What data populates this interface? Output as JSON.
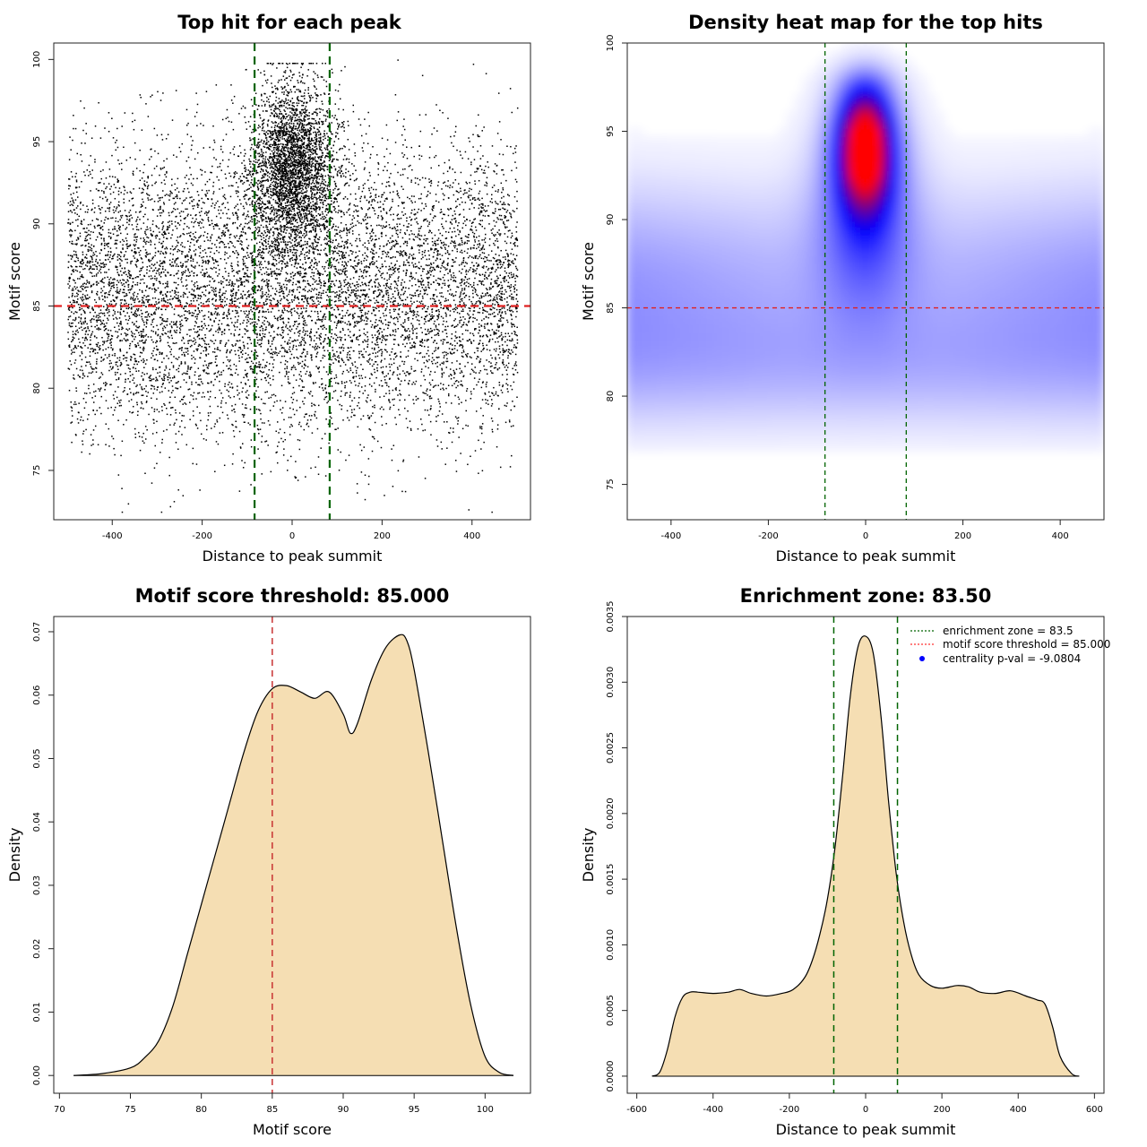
{
  "chart_data": [
    {
      "type": "scatter",
      "title": "Top hit for each peak",
      "xlabel": "Distance to peak summit",
      "ylabel": "Motif score",
      "xlim": [
        -530,
        530
      ],
      "ylim": [
        72,
        101
      ],
      "xticks": [
        -400,
        -200,
        0,
        200,
        400
      ],
      "yticks": [
        75,
        80,
        85,
        90,
        95,
        100
      ],
      "hlines": [
        {
          "y": 85,
          "color": "#e02020",
          "style": "dashed"
        }
      ],
      "vlines": [
        {
          "x": -83.5,
          "color": "#006400",
          "style": "dashed"
        },
        {
          "x": 83.5,
          "color": "#006400",
          "style": "dashed"
        }
      ],
      "point_color": "#000000",
      "distribution": {
        "background": {
          "x_range": [
            -500,
            500
          ],
          "score_peaks": [
            84,
            88
          ],
          "score_range": [
            72.5,
            100
          ]
        },
        "central_cluster": {
          "x_center": 0,
          "x_spread": 60,
          "score_center": 93.5,
          "score_range": [
            87,
            100
          ]
        }
      }
    },
    {
      "type": "heatmap",
      "title": "Density heat map for the top hits",
      "xlabel": "Distance to peak summit",
      "ylabel": "Motif score",
      "xlim": [
        -490,
        490
      ],
      "ylim": [
        73,
        100
      ],
      "xticks": [
        -400,
        -200,
        0,
        200,
        400
      ],
      "yticks": [
        75,
        80,
        85,
        90,
        95,
        100
      ],
      "hlines": [
        {
          "y": 85,
          "color": "#e02020",
          "style": "dashed"
        }
      ],
      "vlines": [
        {
          "x": -83.5,
          "color": "#006400",
          "style": "dashed"
        },
        {
          "x": 83.5,
          "color": "#006400",
          "style": "dashed"
        }
      ],
      "colors": [
        "#ffffff",
        "#0000ff",
        "#ff0000"
      ],
      "hotspot": {
        "x": 0,
        "y": 94.2
      }
    },
    {
      "type": "area",
      "title": "Motif score threshold: 85.000",
      "xlabel": "Motif score",
      "ylabel": "Density",
      "xlim": [
        69.6,
        103.2
      ],
      "ylim": [
        -0.0028,
        0.0724
      ],
      "xticks": [
        70,
        75,
        80,
        85,
        90,
        95,
        100
      ],
      "yticks": [
        0.0,
        0.01,
        0.02,
        0.03,
        0.04,
        0.05,
        0.06,
        0.07
      ],
      "ytick_labels": [
        "0.00",
        "0.01",
        "0.02",
        "0.03",
        "0.04",
        "0.05",
        "0.06",
        "0.07"
      ],
      "fill": "#f5deb3",
      "vlines": [
        {
          "x": 85,
          "color": "#c83232",
          "style": "dashed"
        }
      ],
      "x": [
        71,
        73,
        75,
        76,
        77,
        78,
        79,
        80,
        81,
        82,
        83,
        84,
        85,
        86,
        87,
        88,
        89,
        90,
        90.5,
        91,
        92,
        93,
        94,
        94.5,
        95,
        96,
        97,
        98,
        99,
        100,
        101,
        102
      ],
      "y": [
        0,
        0.0003,
        0.0012,
        0.0028,
        0.0055,
        0.011,
        0.019,
        0.027,
        0.035,
        0.043,
        0.051,
        0.0575,
        0.061,
        0.0615,
        0.0605,
        0.0595,
        0.0605,
        0.057,
        0.054,
        0.0555,
        0.0625,
        0.0675,
        0.0695,
        0.0685,
        0.064,
        0.051,
        0.037,
        0.023,
        0.011,
        0.003,
        0.0005,
        0
      ]
    },
    {
      "type": "area",
      "title": "Enrichment zone: 83.50",
      "xlabel": "Distance to peak summit",
      "ylabel": "Density",
      "xlim": [
        -625,
        625
      ],
      "ylim": [
        -0.00013,
        0.0035
      ],
      "xticks": [
        -600,
        -400,
        -200,
        0,
        200,
        400,
        600
      ],
      "yticks": [
        0.0,
        0.0005,
        0.001,
        0.0015,
        0.002,
        0.0025,
        0.003,
        0.0035
      ],
      "ytick_labels": [
        "0.0000",
        "0.0005",
        "0.0010",
        "0.0015",
        "0.0020",
        "0.0025",
        "0.0030",
        "0.0035"
      ],
      "fill": "#f5deb3",
      "vlines": [
        {
          "x": -83.5,
          "color": "#006400",
          "style": "dashed"
        },
        {
          "x": 83.5,
          "color": "#006400",
          "style": "dashed"
        }
      ],
      "x": [
        -560,
        -540,
        -520,
        -500,
        -480,
        -460,
        -440,
        -400,
        -360,
        -330,
        -300,
        -260,
        -220,
        -190,
        -160,
        -140,
        -120,
        -100,
        -80,
        -60,
        -40,
        -20,
        0,
        20,
        40,
        60,
        80,
        100,
        120,
        140,
        170,
        200,
        240,
        270,
        300,
        340,
        380,
        420,
        450,
        470,
        490,
        510,
        540,
        560
      ],
      "y": [
        0,
        3e-05,
        0.0002,
        0.00045,
        0.0006,
        0.00064,
        0.00064,
        0.00063,
        0.00064,
        0.00066,
        0.00063,
        0.00061,
        0.00063,
        0.00066,
        0.00075,
        0.00088,
        0.00108,
        0.00135,
        0.00175,
        0.0023,
        0.0029,
        0.00327,
        0.00335,
        0.00322,
        0.00275,
        0.0021,
        0.00155,
        0.00117,
        0.00092,
        0.00077,
        0.00069,
        0.00067,
        0.00069,
        0.00068,
        0.00064,
        0.00063,
        0.00065,
        0.00061,
        0.00058,
        0.00055,
        0.00038,
        0.00015,
        2e-05,
        0
      ]
    }
  ],
  "legend": {
    "entries": [
      {
        "label": "enrichment zone = 83.5",
        "color": "#006400",
        "style": "dotted-line"
      },
      {
        "label": "motif score threshold = 85.000",
        "color": "#ff3030",
        "style": "dotted-line"
      },
      {
        "label": "centrality p-val = -9.0804",
        "color": "#0000ff",
        "style": "point"
      }
    ]
  }
}
